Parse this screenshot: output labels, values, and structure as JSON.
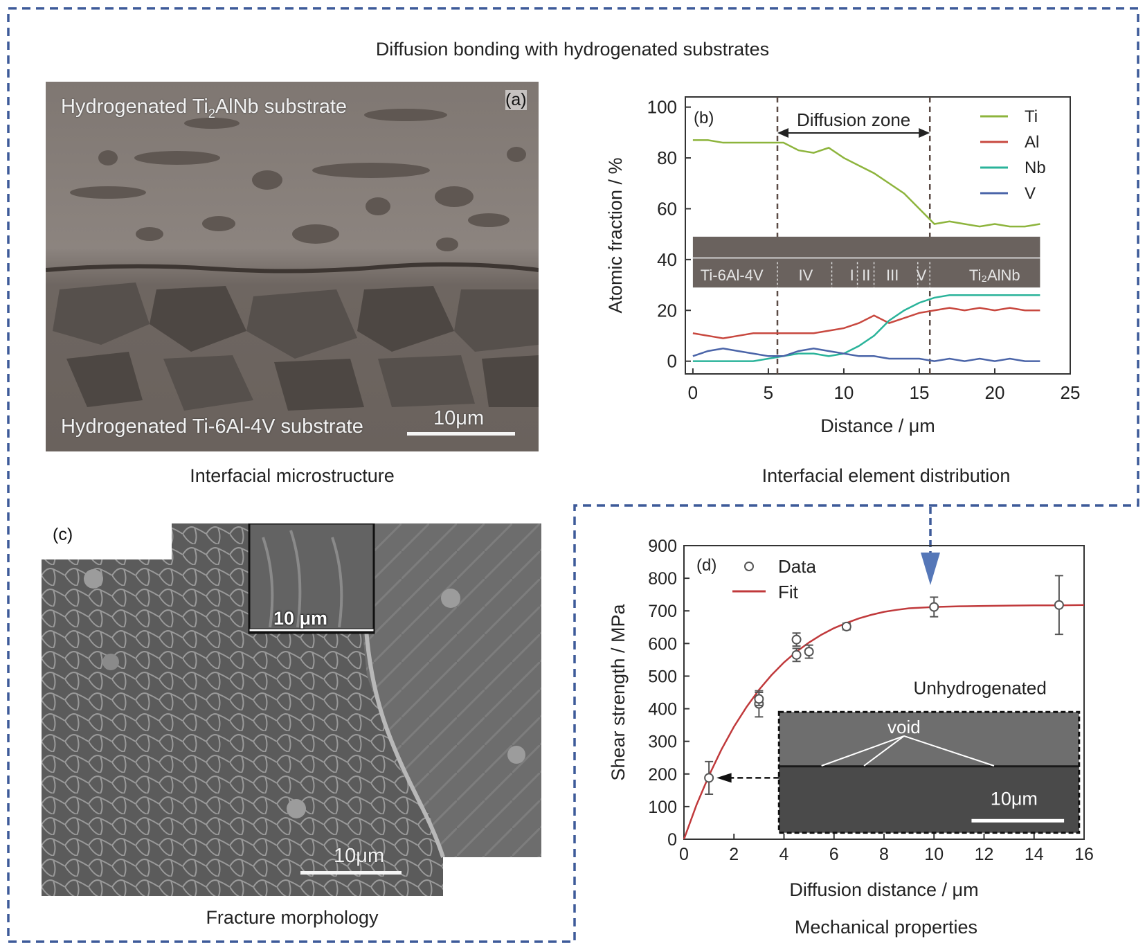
{
  "figure": {
    "title": "Diffusion bonding with hydrogenated substrates"
  },
  "panel_a": {
    "tag": "(a)",
    "top_label_pre": "Hydrogenated Ti",
    "top_label_sub": "2",
    "top_label_post": "AlNb substrate",
    "bottom_label": "Hydrogenated Ti-6Al-4V substrate",
    "scale_label": "10μm",
    "caption": "Interfacial microstructure"
  },
  "panel_b": {
    "tag": "(b)",
    "caption": "Interfacial element distribution",
    "annotation": "Diffusion zone",
    "inset_labels": [
      "Ti-6Al-4V",
      "IV",
      "I",
      "II",
      "III",
      "V",
      "Ti₂AlNb"
    ],
    "colors": {
      "Ti": "#8db43c",
      "Al": "#c8483f",
      "Nb": "#2ab39a",
      "V": "#4a64a8"
    },
    "chart_data": {
      "type": "line",
      "xlabel": "Distance / μm",
      "ylabel": "Atomic fraction / %",
      "xlim": [
        -0.5,
        25
      ],
      "ylim": [
        -5,
        104
      ],
      "xticks": [
        0,
        5,
        10,
        15,
        20,
        25
      ],
      "yticks": [
        0,
        20,
        40,
        60,
        80,
        100
      ],
      "diffusion_zone": [
        5.6,
        15.7
      ],
      "x": [
        0,
        1,
        2,
        3,
        4,
        5,
        6,
        7,
        8,
        9,
        10,
        11,
        12,
        13,
        14,
        15,
        16,
        17,
        18,
        19,
        20,
        21,
        22,
        23
      ],
      "series": [
        {
          "name": "Ti",
          "values": [
            87,
            87,
            86,
            86,
            86,
            86,
            86,
            83,
            82,
            84,
            80,
            77,
            74,
            70,
            66,
            60,
            54,
            55,
            54,
            53,
            54,
            53,
            53,
            54
          ]
        },
        {
          "name": "Al",
          "values": [
            11,
            10,
            9,
            10,
            11,
            11,
            11,
            11,
            11,
            12,
            13,
            15,
            18,
            15,
            17,
            19,
            20,
            21,
            20,
            21,
            20,
            21,
            20,
            20
          ]
        },
        {
          "name": "Nb",
          "values": [
            0,
            0,
            0,
            0,
            0,
            1,
            2,
            3,
            3,
            2,
            3,
            6,
            10,
            16,
            20,
            23,
            25,
            26,
            26,
            26,
            26,
            26,
            26,
            26
          ]
        },
        {
          "name": "V",
          "values": [
            2,
            4,
            5,
            4,
            3,
            2,
            2,
            4,
            5,
            4,
            3,
            2,
            2,
            1,
            1,
            1,
            0,
            1,
            0,
            1,
            0,
            1,
            0,
            0
          ]
        }
      ]
    }
  },
  "panel_c": {
    "tag": "(c)",
    "inset_scale_label": "10 μm",
    "scale_label": "10μm",
    "caption": "Fracture morphology"
  },
  "panel_d": {
    "tag": "(d)",
    "caption": "Mechanical properties",
    "inset_title": "Unhydrogenated",
    "inset_void": "void",
    "inset_scale_label": "10μm",
    "colors": {
      "fit": "#c0393b",
      "data": "#555555"
    },
    "chart_data": {
      "type": "scatter",
      "xlabel": "Diffusion distance / μm",
      "ylabel": "Shear strength / MPa",
      "xlim": [
        0,
        16
      ],
      "ylim": [
        0,
        900
      ],
      "xticks": [
        0,
        2,
        4,
        6,
        8,
        10,
        12,
        14,
        16
      ],
      "yticks": [
        0,
        100,
        200,
        300,
        400,
        500,
        600,
        700,
        800,
        900
      ],
      "series": [
        {
          "name": "Data",
          "points": [
            {
              "x": 1.0,
              "y": 188,
              "err": 50
            },
            {
              "x": 3.0,
              "y": 415,
              "err": 40
            },
            {
              "x": 3.0,
              "y": 430,
              "err": 20
            },
            {
              "x": 4.5,
              "y": 565,
              "err": 20
            },
            {
              "x": 4.5,
              "y": 612,
              "err": 20
            },
            {
              "x": 5.0,
              "y": 575,
              "err": 20
            },
            {
              "x": 6.5,
              "y": 652,
              "err": 10
            },
            {
              "x": 10.0,
              "y": 712,
              "err": 30
            },
            {
              "x": 15.0,
              "y": 718,
              "err": 90
            }
          ]
        },
        {
          "name": "Fit",
          "x": [
            0,
            0.5,
            1,
            1.5,
            2,
            2.5,
            3,
            3.5,
            4,
            4.5,
            5,
            5.5,
            6,
            6.5,
            7,
            7.5,
            8,
            8.5,
            9,
            10,
            11,
            12,
            13,
            14,
            15,
            16
          ],
          "values": [
            0,
            105,
            195,
            275,
            345,
            405,
            458,
            503,
            542,
            575,
            603,
            627,
            647,
            663,
            677,
            688,
            697,
            703,
            708,
            712,
            714,
            715,
            716,
            717,
            717,
            718
          ]
        }
      ]
    }
  }
}
